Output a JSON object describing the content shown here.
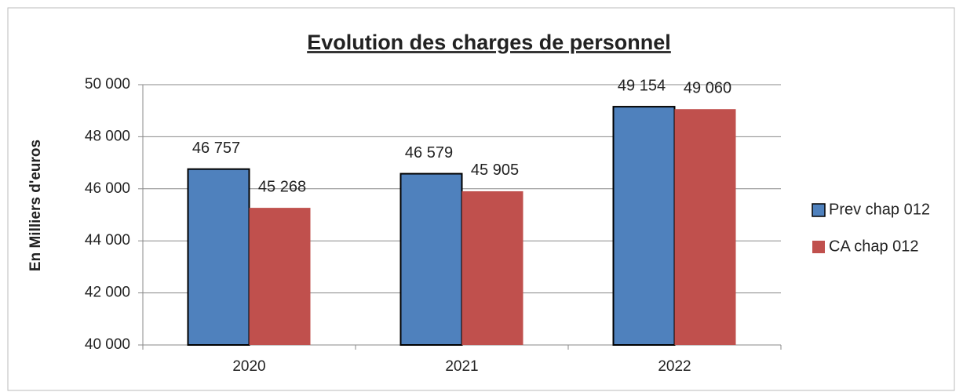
{
  "chart_data": {
    "type": "bar",
    "title": "Evolution  des charges  de personnel",
    "y_label": "En Milliers d'euros",
    "categories": [
      "2020",
      "2021",
      "2022"
    ],
    "series": [
      {
        "name": "Prev chap 012",
        "color": "#4f81bd",
        "values": [
          46757,
          46579,
          49154
        ],
        "value_labels": [
          "46 757",
          "46 579",
          "49 154"
        ]
      },
      {
        "name": "CA chap 012",
        "color": "#c0504d",
        "values": [
          45268,
          45905,
          49060
        ],
        "value_labels": [
          "45 268",
          "45 905",
          "49 060"
        ]
      }
    ],
    "ylim": [
      40000,
      50000
    ],
    "yticks": [
      {
        "value": 40000,
        "label": "40 000"
      },
      {
        "value": 42000,
        "label": "42 000"
      },
      {
        "value": 44000,
        "label": "44 000"
      },
      {
        "value": 46000,
        "label": "46 000"
      },
      {
        "value": 48000,
        "label": "48 000"
      },
      {
        "value": 50000,
        "label": "50 000"
      }
    ],
    "grid": true,
    "legend": "right"
  }
}
